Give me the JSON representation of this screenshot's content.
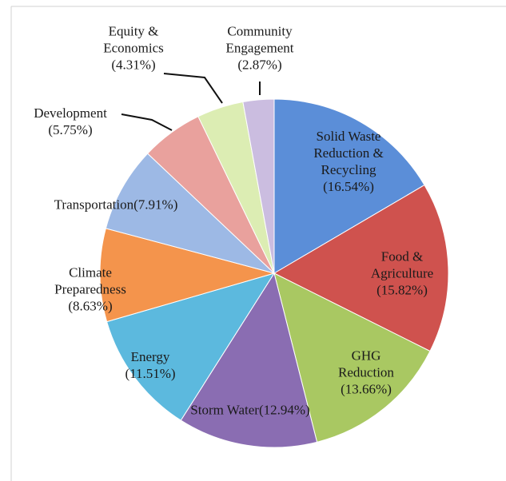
{
  "chart_data": {
    "type": "pie",
    "categories": [
      "Solid Waste Reduction & Recycling",
      "Food & Agriculture",
      "GHG Reduction",
      "Storm Water",
      "Energy",
      "Climate Preparedness",
      "Transportation",
      "Development",
      "Equity & Economics",
      "Community Engagement"
    ],
    "values": [
      16.54,
      15.82,
      13.66,
      12.94,
      11.51,
      8.63,
      7.91,
      5.75,
      4.31,
      2.87
    ],
    "value_labels": [
      "(16.54%)",
      "(15.82%)",
      "(13.66%)",
      "(12.94%)",
      "(11.51%)",
      "(8.63%)",
      "(7.91%)",
      "(5.75%)",
      "(4.31%)",
      "(2.87%)"
    ],
    "colors": [
      "#5b8ed8",
      "#cf524e",
      "#a9c862",
      "#8a6db2",
      "#5cb9de",
      "#f4944c",
      "#9db9e5",
      "#e9a19d",
      "#dcedb3",
      "#cbbde0"
    ]
  }
}
